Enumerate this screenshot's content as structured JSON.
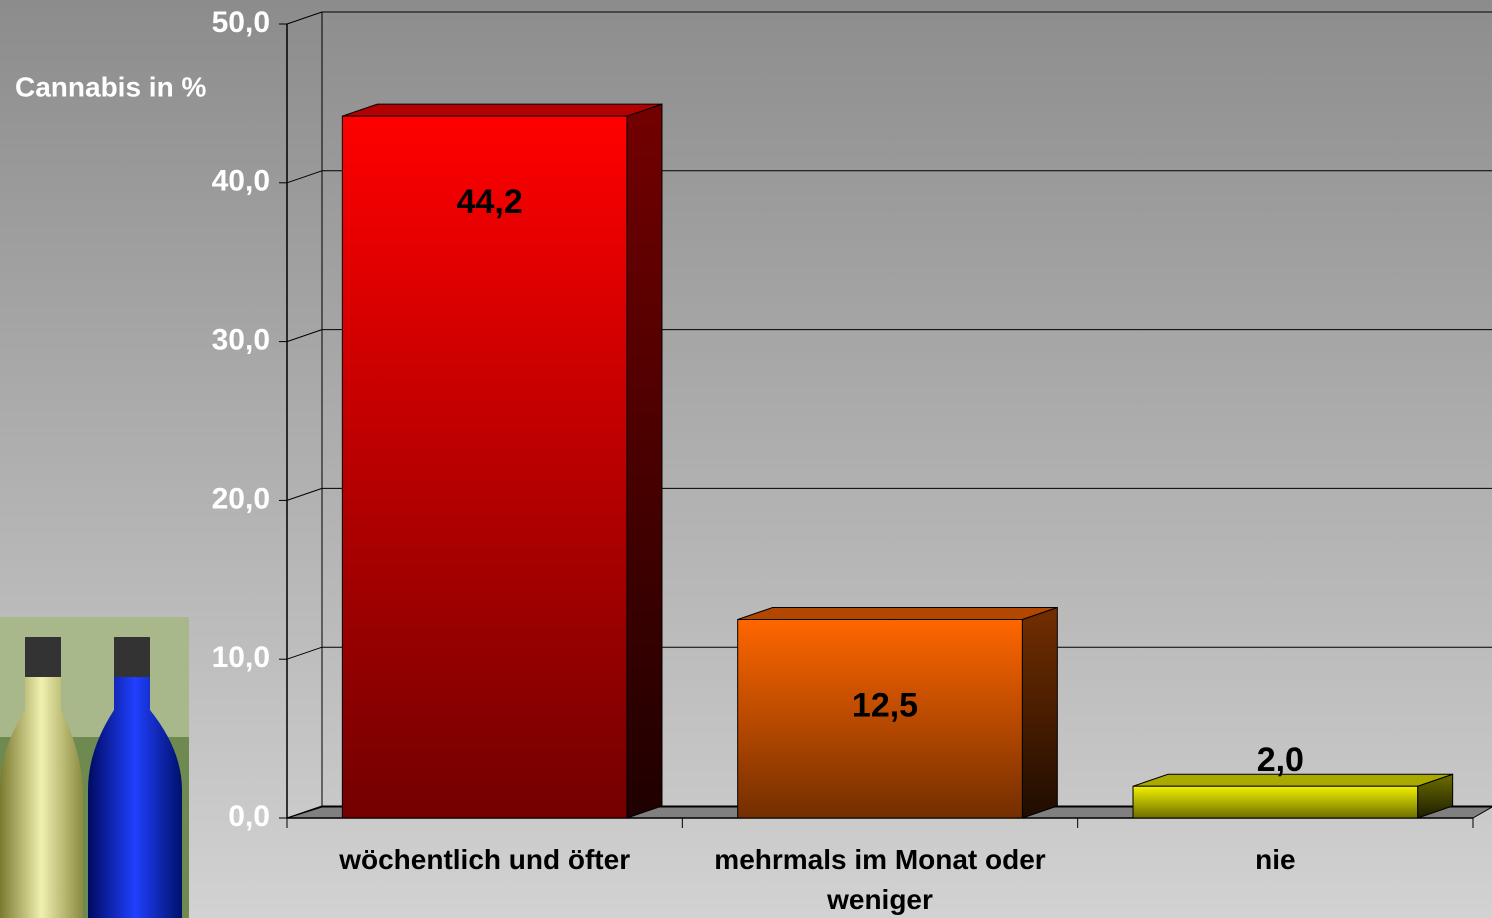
{
  "chart_data": {
    "type": "bar3d",
    "ylabel": "Cannabis in %",
    "categories": [
      "wöchentlich und öfter",
      "mehrmals im Monat oder weniger",
      "nie"
    ],
    "values": [
      44.2,
      12.5,
      2.0
    ],
    "value_labels": [
      "44,2",
      "12,5",
      "2,0"
    ],
    "colors": [
      "#ff0000",
      "#ff6600",
      "#f2f200"
    ],
    "ylim": [
      0,
      50
    ],
    "yticks": [
      {
        "value": 0,
        "label": "0,0"
      },
      {
        "value": 10,
        "label": "10,0"
      },
      {
        "value": 20,
        "label": "20,0"
      },
      {
        "value": 30,
        "label": "30,0"
      },
      {
        "value": 40,
        "label": "40,0"
      },
      {
        "value": 50,
        "label": "50,0"
      }
    ],
    "grid": true
  }
}
